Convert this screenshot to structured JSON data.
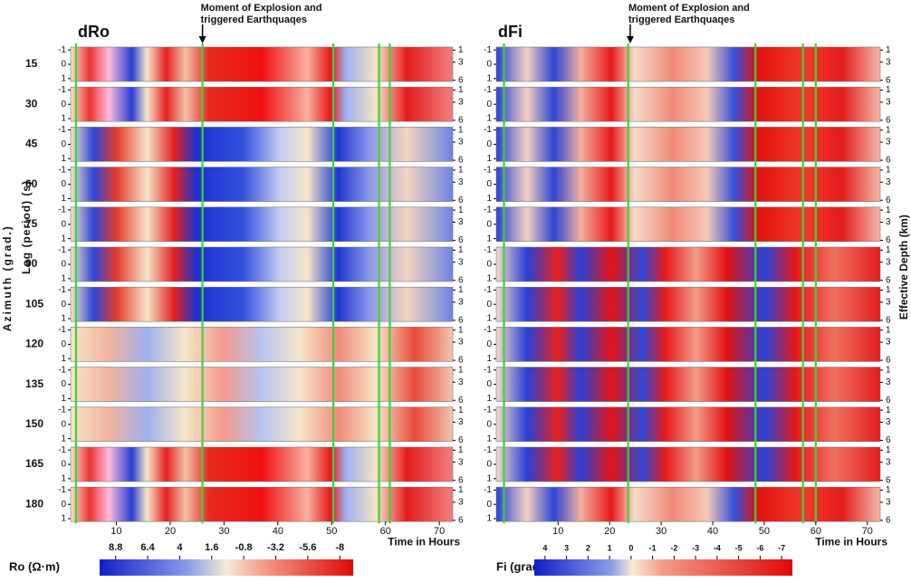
{
  "chart_data": [
    {
      "type": "heatmap",
      "title": "dRo",
      "annotation": [
        "Moment of Explosion and",
        "triggered Earthquaqes"
      ],
      "annotation_x": 26,
      "categories": [
        "15",
        "30",
        "45",
        "60",
        "75",
        "90",
        "105",
        "120",
        "135",
        "150",
        "165",
        "180"
      ],
      "ylabel": "Log (period) (s)",
      "outer_label": "Azimuth (grad.)",
      "xlabel": "Time in Hours",
      "xlim": [
        1.5,
        72.5
      ],
      "xticks": [
        10,
        20,
        30,
        40,
        50,
        60,
        70
      ],
      "ylim": [
        -1.2,
        1.2
      ],
      "yticks": [
        -1,
        0,
        1
      ],
      "y2lim": [
        0.5,
        6.2
      ],
      "y2ticks": [
        1,
        3,
        6
      ],
      "event_lines": [
        2.5,
        26,
        50.3,
        58.8,
        60.8
      ],
      "event_color": "#3cd23c",
      "colorbar": {
        "label": "Ro (Ω·m)",
        "lim": [
          10,
          -9
        ],
        "ticks": [
          8.8,
          6.4,
          4,
          1.6,
          -0.8,
          -3.2,
          -5.6,
          -8
        ]
      }
    },
    {
      "type": "heatmap",
      "title": "dFi",
      "annotation": [
        "Moment of Explosion and",
        "triggered Earthquaqes"
      ],
      "annotation_x": 24,
      "y2label": "Effective Depth (km)",
      "xlabel": "Time in Hours",
      "xlim": [
        -2,
        72.5
      ],
      "xticks": [
        10,
        20,
        30,
        40,
        50,
        60,
        70
      ],
      "ylim": [
        -1.2,
        1.2
      ],
      "yticks": [
        -1,
        0,
        1
      ],
      "y2lim": [
        0.5,
        6.2
      ],
      "y2ticks": [
        1,
        3,
        6
      ],
      "event_lines": [
        -0.5,
        23.6,
        48.3,
        57.5,
        60
      ],
      "event_color": "#3cd23c",
      "colorbar": {
        "label": "Fi (grad.)",
        "lim": [
          4.5,
          -7.5
        ],
        "ticks": [
          4,
          3,
          2,
          1,
          0,
          -1,
          -2,
          -3,
          -4,
          -5,
          -6,
          -7
        ]
      }
    }
  ]
}
